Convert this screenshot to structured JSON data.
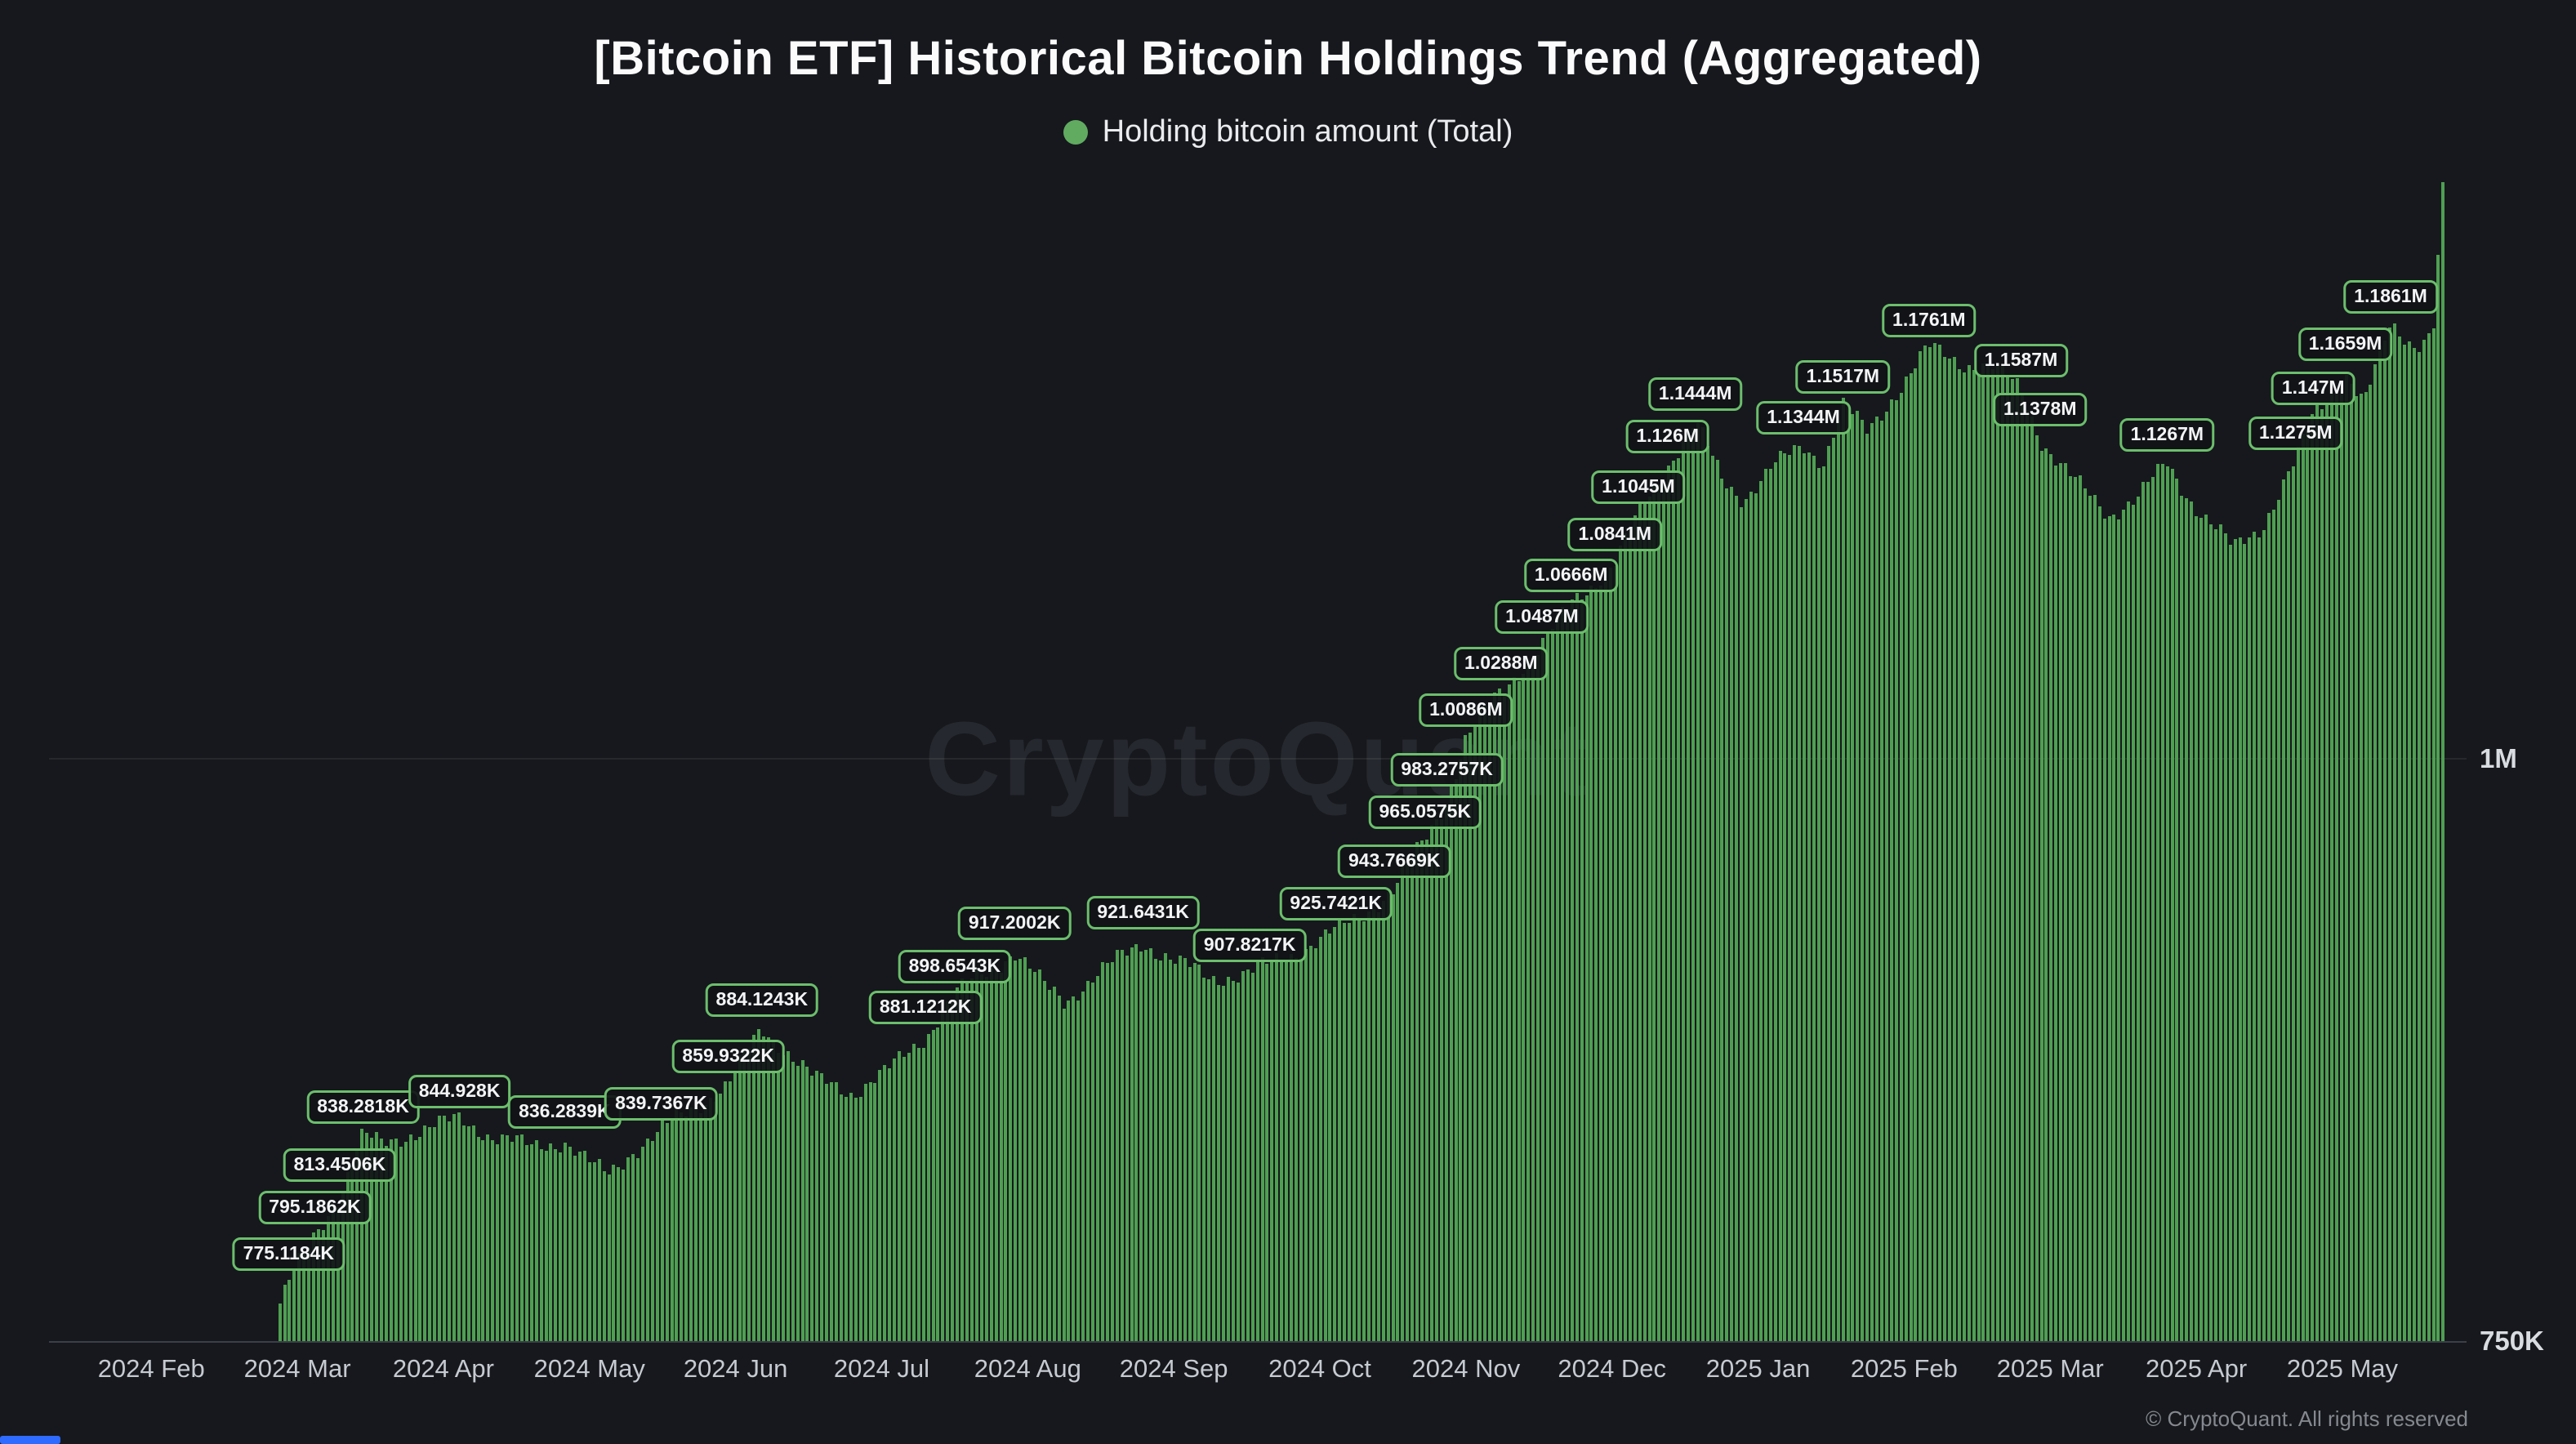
{
  "page": {
    "title": "[Bitcoin ETF] Historical Bitcoin Holdings Trend (Aggregated)",
    "legend": {
      "label": "Holding bitcoin amount (Total)",
      "dot_color": "#61ab61"
    },
    "watermark": "CryptoQuant",
    "copyright": "© CryptoQuant. All rights reserved",
    "colors": {
      "background": "#16181d",
      "bar": "#4f9f52",
      "annotation_border": "#6cbe6c",
      "grid": "#3b3f47",
      "axis_text": "#c6cad1",
      "scroll_accent": "#2f6bff"
    }
  },
  "chart_data": {
    "type": "bar",
    "title": "[Bitcoin ETF] Historical Bitcoin Holdings Trend (Aggregated)",
    "series_name": "Holding bitcoin amount (Total)",
    "unit": "BTC",
    "legend_position": "top",
    "xlabel": "",
    "ylabel": "",
    "x_ticks": [
      "2024 Feb",
      "2024 Mar",
      "2024 Apr",
      "2024 May",
      "2024 Jun",
      "2024 Jul",
      "2024 Aug",
      "2024 Sep",
      "2024 Oct",
      "2024 Nov",
      "2024 Dec",
      "2025 Jan",
      "2025 Feb",
      "2025 Mar",
      "2025 Apr",
      "2025 May"
    ],
    "x_range_m": [
      -0.7,
      15.85
    ],
    "y_axis_ticks": [
      {
        "value_k": 1000,
        "label": "1M"
      },
      {
        "value_k": 750,
        "label": "750K"
      }
    ],
    "grid_values_k": [
      1000
    ],
    "y_range_k": [
      750,
      1245
    ],
    "bars": {
      "start_m": 0.88,
      "end_m": 15.69,
      "count": 448
    },
    "anchors_m_valueK": [
      [
        0.88,
        766
      ],
      [
        0.94,
        775
      ],
      [
        1.12,
        795
      ],
      [
        1.29,
        813.5
      ],
      [
        1.45,
        838.3
      ],
      [
        1.58,
        834
      ],
      [
        1.8,
        840
      ],
      [
        2.11,
        845
      ],
      [
        2.35,
        838
      ],
      [
        2.6,
        833
      ],
      [
        2.83,
        836.3
      ],
      [
        3.0,
        826
      ],
      [
        3.12,
        821
      ],
      [
        3.3,
        832
      ],
      [
        3.49,
        839.7
      ],
      [
        3.7,
        850
      ],
      [
        3.95,
        860
      ],
      [
        4.18,
        884.1
      ],
      [
        4.35,
        875
      ],
      [
        4.55,
        862
      ],
      [
        4.8,
        857
      ],
      [
        5.05,
        866
      ],
      [
        5.3,
        881.1
      ],
      [
        5.5,
        898.7
      ],
      [
        5.7,
        908
      ],
      [
        5.91,
        917.2
      ],
      [
        6.1,
        903
      ],
      [
        6.25,
        896
      ],
      [
        6.45,
        906
      ],
      [
        6.79,
        921.6
      ],
      [
        7.0,
        913
      ],
      [
        7.25,
        906
      ],
      [
        7.52,
        907.8
      ],
      [
        7.8,
        916
      ],
      [
        8.11,
        925.7
      ],
      [
        8.3,
        934
      ],
      [
        8.51,
        943.8
      ],
      [
        8.72,
        965.1
      ],
      [
        8.87,
        983.3
      ],
      [
        9.0,
        1008.6
      ],
      [
        9.24,
        1028.8
      ],
      [
        9.52,
        1048.7
      ],
      [
        9.72,
        1066.6
      ],
      [
        10.02,
        1084.1
      ],
      [
        10.18,
        1104.5
      ],
      [
        10.38,
        1126
      ],
      [
        10.57,
        1144.4
      ],
      [
        10.75,
        1120
      ],
      [
        10.9,
        1112
      ],
      [
        11.1,
        1125
      ],
      [
        11.31,
        1134.4
      ],
      [
        11.45,
        1128
      ],
      [
        11.58,
        1151.7
      ],
      [
        11.75,
        1140
      ],
      [
        11.95,
        1158
      ],
      [
        12.17,
        1176.1
      ],
      [
        12.4,
        1170
      ],
      [
        12.6,
        1168
      ],
      [
        12.8,
        1158.7
      ],
      [
        12.93,
        1137.8
      ],
      [
        13.15,
        1120
      ],
      [
        13.4,
        1105
      ],
      [
        13.6,
        1112
      ],
      [
        13.8,
        1126.7
      ],
      [
        14.0,
        1108
      ],
      [
        14.25,
        1090
      ],
      [
        14.45,
        1100
      ],
      [
        14.68,
        1127.5
      ],
      [
        14.8,
        1147
      ],
      [
        15.02,
        1165.9
      ],
      [
        15.15,
        1152
      ],
      [
        15.33,
        1186.1
      ],
      [
        15.5,
        1178
      ],
      [
        15.62,
        1183
      ],
      [
        15.69,
        1243
      ]
    ],
    "annotations": [
      {
        "label": "775.1184K",
        "m": 0.94,
        "value_k": 775.1184
      },
      {
        "label": "795.1862K",
        "m": 1.12,
        "value_k": 795.1862
      },
      {
        "label": "813.4506K",
        "m": 1.29,
        "value_k": 813.4506
      },
      {
        "label": "838.2818K",
        "m": 1.45,
        "value_k": 838.2818
      },
      {
        "label": "844.928K",
        "m": 2.11,
        "value_k": 844.928
      },
      {
        "label": "836.2839K",
        "m": 2.83,
        "value_k": 836.2839
      },
      {
        "label": "839.7367K",
        "m": 3.49,
        "value_k": 839.7367
      },
      {
        "label": "859.9322K",
        "m": 3.95,
        "value_k": 859.9322
      },
      {
        "label": "884.1243K",
        "m": 4.18,
        "value_k": 884.1243
      },
      {
        "label": "881.1212K",
        "m": 5.3,
        "value_k": 881.1212
      },
      {
        "label": "898.6543K",
        "m": 5.5,
        "value_k": 898.6543
      },
      {
        "label": "917.2002K",
        "m": 5.91,
        "value_k": 917.2002
      },
      {
        "label": "921.6431K",
        "m": 6.79,
        "value_k": 921.6431
      },
      {
        "label": "907.8217K",
        "m": 7.52,
        "value_k": 907.8217
      },
      {
        "label": "925.7421K",
        "m": 8.11,
        "value_k": 925.7421
      },
      {
        "label": "943.7669K",
        "m": 8.51,
        "value_k": 943.7669
      },
      {
        "label": "965.0575K",
        "m": 8.72,
        "value_k": 965.0575
      },
      {
        "label": "983.2757K",
        "m": 8.87,
        "value_k": 983.2757
      },
      {
        "label": "1.0086M",
        "m": 9.0,
        "value_k": 1008.6
      },
      {
        "label": "1.0288M",
        "m": 9.24,
        "value_k": 1028.8
      },
      {
        "label": "1.0487M",
        "m": 9.52,
        "value_k": 1048.7
      },
      {
        "label": "1.0666M",
        "m": 9.72,
        "value_k": 1066.6
      },
      {
        "label": "1.0841M",
        "m": 10.02,
        "value_k": 1084.1
      },
      {
        "label": "1.1045M",
        "m": 10.18,
        "value_k": 1104.5
      },
      {
        "label": "1.126M",
        "m": 10.38,
        "value_k": 1126
      },
      {
        "label": "1.1444M",
        "m": 10.57,
        "value_k": 1144.4
      },
      {
        "label": "1.1344M",
        "m": 11.31,
        "value_k": 1134.4
      },
      {
        "label": "1.1517M",
        "m": 11.58,
        "value_k": 1151.7
      },
      {
        "label": "1.1761M",
        "m": 12.17,
        "value_k": 1176.1
      },
      {
        "label": "1.1587M",
        "m": 12.8,
        "value_k": 1158.7
      },
      {
        "label": "1.1378M",
        "m": 12.93,
        "value_k": 1137.8
      },
      {
        "label": "1.1267M",
        "m": 13.8,
        "value_k": 1126.7
      },
      {
        "label": "1.1275M",
        "m": 14.68,
        "value_k": 1127.5
      },
      {
        "label": "1.147M",
        "m": 14.8,
        "value_k": 1147
      },
      {
        "label": "1.1659M",
        "m": 15.02,
        "value_k": 1165.9
      },
      {
        "label": "1.1861M",
        "m": 15.33,
        "value_k": 1186.1
      }
    ]
  }
}
